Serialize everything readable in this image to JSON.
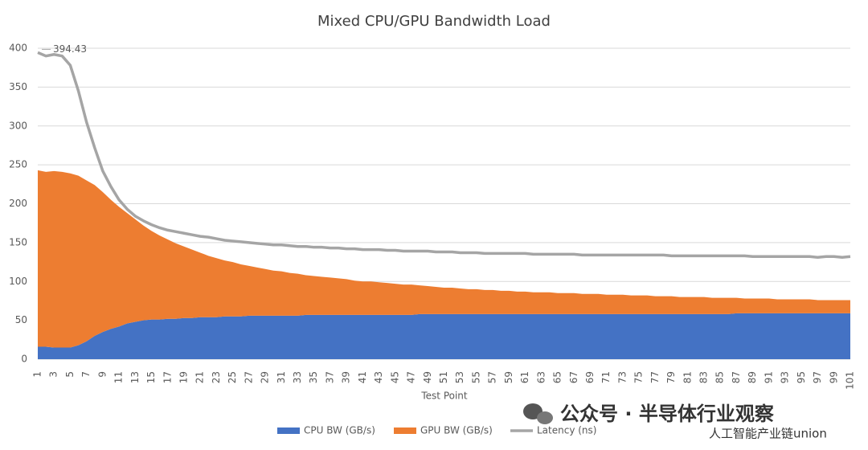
{
  "chart_data": {
    "type": "area",
    "title": "Mixed CPU/GPU Bandwidth Load",
    "x_label": "Test Point",
    "categories": [
      "1",
      null,
      "3",
      null,
      "5",
      null,
      "7",
      null,
      "9",
      null,
      "11",
      null,
      "13",
      null,
      "15",
      null,
      "17",
      null,
      "19",
      null,
      "21",
      null,
      "23",
      null,
      "25",
      null,
      "27",
      null,
      "29",
      null,
      "31",
      null,
      "33",
      null,
      "35",
      null,
      "37",
      null,
      "39",
      null,
      "41",
      null,
      "43",
      null,
      "45",
      null,
      "47",
      null,
      "49",
      null,
      "51",
      null,
      "53",
      null,
      "55",
      null,
      "57",
      null,
      "59",
      null,
      "61",
      null,
      "63",
      null,
      "65",
      null,
      "67",
      null,
      "69",
      null,
      "71",
      null,
      "73",
      null,
      "75",
      null,
      "77",
      null,
      "79",
      null,
      "81",
      null,
      "83",
      null,
      "85",
      null,
      "87",
      null,
      "89",
      null,
      "91",
      null,
      "93",
      null,
      "95",
      null,
      "97",
      null,
      "99",
      null,
      "101"
    ],
    "series": [
      {
        "name": "CPU BW (GB/s)",
        "type": "area",
        "color": "#4472c4",
        "values": [
          16,
          16,
          15,
          15,
          15,
          18,
          23,
          30,
          35,
          39,
          42,
          46,
          48,
          50,
          51,
          51,
          52,
          52,
          53,
          53,
          54,
          54,
          54,
          55,
          55,
          55,
          56,
          56,
          56,
          56,
          56,
          56,
          56,
          57,
          57,
          57,
          57,
          57,
          57,
          57,
          57,
          57,
          57,
          57,
          57,
          57,
          57,
          58,
          58,
          58,
          58,
          58,
          58,
          58,
          58,
          58,
          58,
          58,
          58,
          58,
          58,
          58,
          58,
          58,
          58,
          58,
          58,
          58,
          58,
          58,
          58,
          58,
          58,
          58,
          58,
          58,
          58,
          58,
          58,
          58,
          58,
          58,
          58,
          58,
          58,
          58,
          59,
          59,
          59,
          59,
          59,
          59,
          59,
          59,
          59,
          59,
          59,
          59,
          59,
          59,
          59
        ]
      },
      {
        "name": "GPU BW (GB/s)",
        "type": "area",
        "color": "#ed7d31",
        "values": [
          227,
          225,
          227,
          226,
          224,
          218,
          207,
          194,
          180,
          166,
          154,
          142,
          132,
          122,
          114,
          108,
          102,
          97,
          92,
          88,
          83,
          79,
          76,
          72,
          70,
          67,
          64,
          62,
          60,
          58,
          57,
          55,
          54,
          51,
          50,
          49,
          48,
          47,
          46,
          44,
          43,
          43,
          42,
          41,
          40,
          39,
          39,
          37,
          36,
          35,
          34,
          34,
          33,
          32,
          32,
          31,
          31,
          30,
          30,
          29,
          29,
          28,
          28,
          28,
          27,
          27,
          27,
          26,
          26,
          26,
          25,
          25,
          25,
          24,
          24,
          24,
          23,
          23,
          23,
          22,
          22,
          22,
          22,
          21,
          21,
          21,
          20,
          19,
          19,
          19,
          19,
          18,
          18,
          18,
          18,
          18,
          17,
          17,
          17,
          17,
          17
        ]
      },
      {
        "name": "Latency (ns)",
        "type": "line",
        "color": "#a5a5a5",
        "values": [
          394.43,
          390,
          392,
          390,
          378,
          345,
          305,
          272,
          242,
          222,
          205,
          193,
          184,
          178,
          173,
          169,
          166,
          164,
          162,
          160,
          158,
          157,
          155,
          153,
          152,
          151,
          150,
          149,
          148,
          147,
          147,
          146,
          145,
          145,
          144,
          144,
          143,
          143,
          142,
          142,
          141,
          141,
          141,
          140,
          140,
          139,
          139,
          139,
          139,
          138,
          138,
          138,
          137,
          137,
          137,
          136,
          136,
          136,
          136,
          136,
          136,
          135,
          135,
          135,
          135,
          135,
          135,
          134,
          134,
          134,
          134,
          134,
          134,
          134,
          134,
          134,
          134,
          134,
          133,
          133,
          133,
          133,
          133,
          133,
          133,
          133,
          133,
          133,
          132,
          132,
          132,
          132,
          132,
          132,
          132,
          132,
          131,
          132,
          132,
          131,
          132
        ]
      }
    ],
    "ylim": [
      0,
      400
    ],
    "yticks": [
      0,
      50,
      100,
      150,
      200,
      250,
      300,
      350,
      400
    ],
    "grid": true,
    "legend": "bottom",
    "watermark": [
      "公众号 · 半导体行业观察",
      "人工智能产业链union"
    ]
  }
}
